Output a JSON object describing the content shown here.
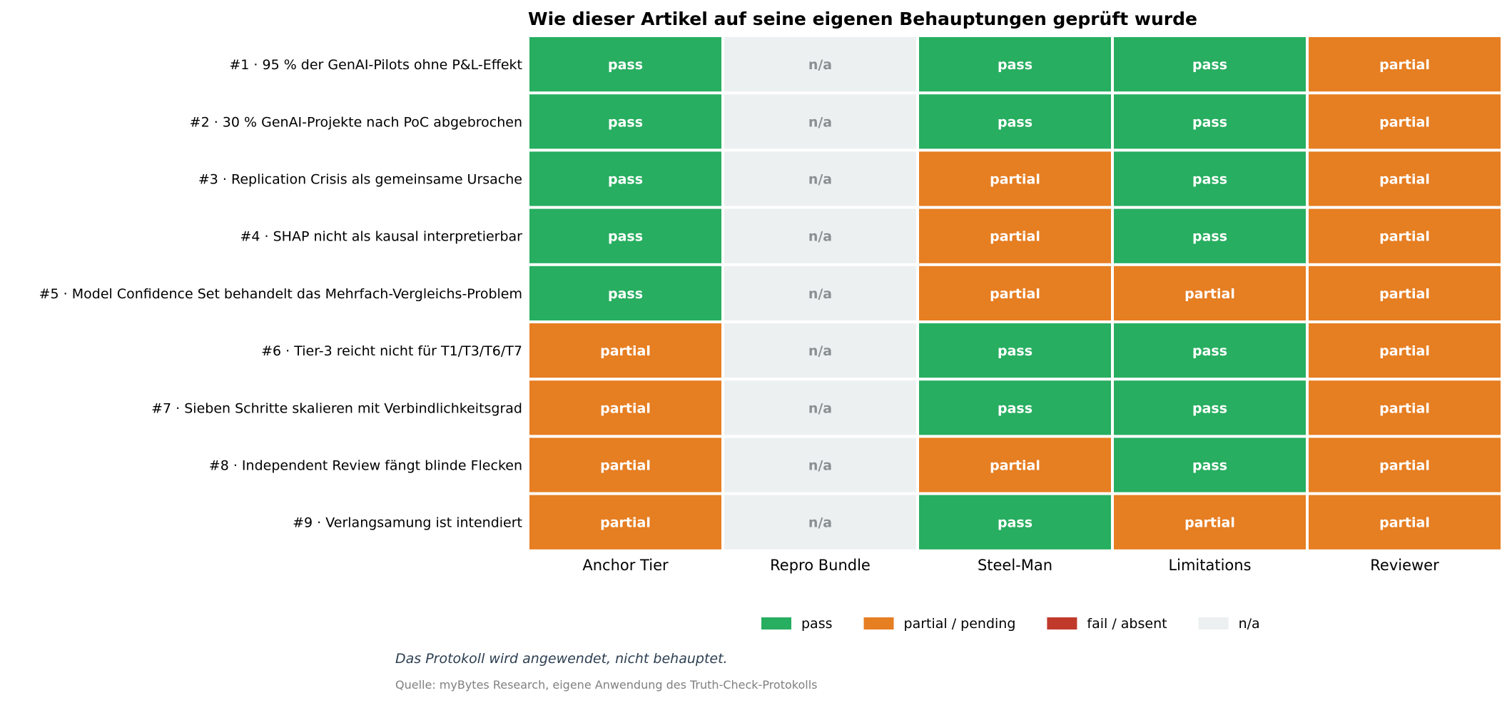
{
  "chart_data": {
    "type": "heatmap",
    "title": "Wie dieser Artikel auf seine eigenen Behauptungen geprüft wurde",
    "rows": [
      "#1 · 95 % der GenAI-Pilots ohne P&L-Effekt",
      "#2 · 30 % GenAI-Projekte nach PoC abgebrochen",
      "#3 · Replication Crisis als gemeinsame Ursache",
      "#4 · SHAP nicht als kausal interpretierbar",
      "#5 · Model Confidence Set behandelt das Mehrfach-Vergleichs-Problem",
      "#6 · Tier-3 reicht nicht für T1/T3/T6/T7",
      "#7 · Sieben Schritte skalieren mit Verbindlichkeitsgrad",
      "#8 · Independent Review fängt blinde Flecken",
      "#9 · Verlangsamung ist intendiert"
    ],
    "columns": [
      "Anchor Tier",
      "Repro Bundle",
      "Steel-Man",
      "Limitations",
      "Reviewer"
    ],
    "values": [
      [
        "pass",
        "n/a",
        "pass",
        "pass",
        "partial"
      ],
      [
        "pass",
        "n/a",
        "pass",
        "pass",
        "partial"
      ],
      [
        "pass",
        "n/a",
        "partial",
        "pass",
        "partial"
      ],
      [
        "pass",
        "n/a",
        "partial",
        "pass",
        "partial"
      ],
      [
        "pass",
        "n/a",
        "partial",
        "partial",
        "partial"
      ],
      [
        "partial",
        "n/a",
        "pass",
        "pass",
        "partial"
      ],
      [
        "partial",
        "n/a",
        "pass",
        "pass",
        "partial"
      ],
      [
        "partial",
        "n/a",
        "partial",
        "pass",
        "partial"
      ],
      [
        "partial",
        "n/a",
        "pass",
        "partial",
        "partial"
      ]
    ],
    "status_colors": {
      "pass": "#27ae60",
      "partial": "#e67e22",
      "fail": "#c0392b",
      "n/a": "#ecf0f1"
    },
    "cell_text_colors": {
      "pass": "#ffffff",
      "partial": "#ffffff",
      "fail": "#ffffff",
      "n/a": "#8a8f91"
    },
    "legend": [
      {
        "key": "pass",
        "label": "pass"
      },
      {
        "key": "partial",
        "label": "partial / pending"
      },
      {
        "key": "fail",
        "label": "fail / absent"
      },
      {
        "key": "n/a",
        "label": "n/a"
      }
    ],
    "legend_placement": "bottom-center"
  },
  "footer": {
    "note": "Das Protokoll wird angewendet, nicht behauptet.",
    "source": "Quelle: myBytes Research, eigene Anwendung des Truth-Check-Protokolls"
  }
}
